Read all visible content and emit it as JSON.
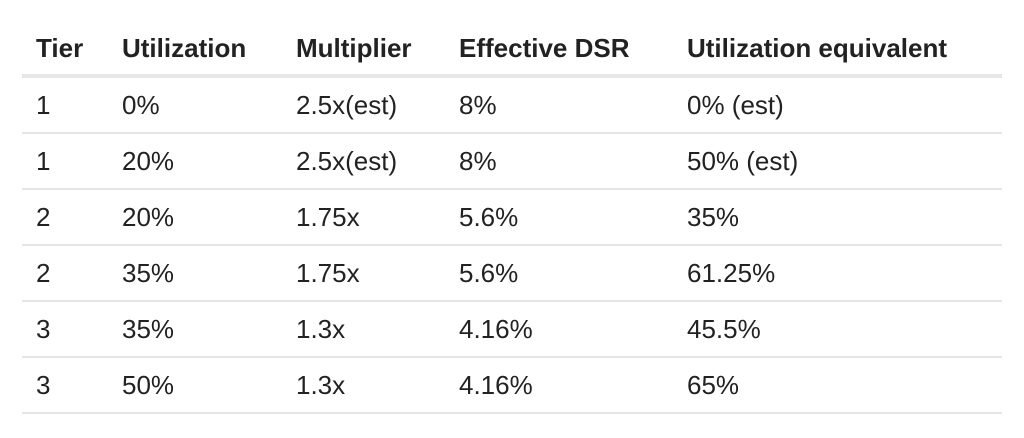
{
  "table": {
    "headers": [
      "Tier",
      "Utilization",
      "Multiplier",
      "Effective DSR",
      "Utilization equivalent"
    ],
    "rows": [
      [
        "1",
        "0%",
        "2.5x(est)",
        "8%",
        "0% (est)"
      ],
      [
        "1",
        "20%",
        "2.5x(est)",
        "8%",
        "50% (est)"
      ],
      [
        "2",
        "20%",
        "1.75x",
        "5.6%",
        "35%"
      ],
      [
        "2",
        "35%",
        "1.75x",
        "5.6%",
        "61.25%"
      ],
      [
        "3",
        "35%",
        "1.3x",
        "4.16%",
        "45.5%"
      ],
      [
        "3",
        "50%",
        "1.3x",
        "4.16%",
        "65%"
      ]
    ]
  }
}
